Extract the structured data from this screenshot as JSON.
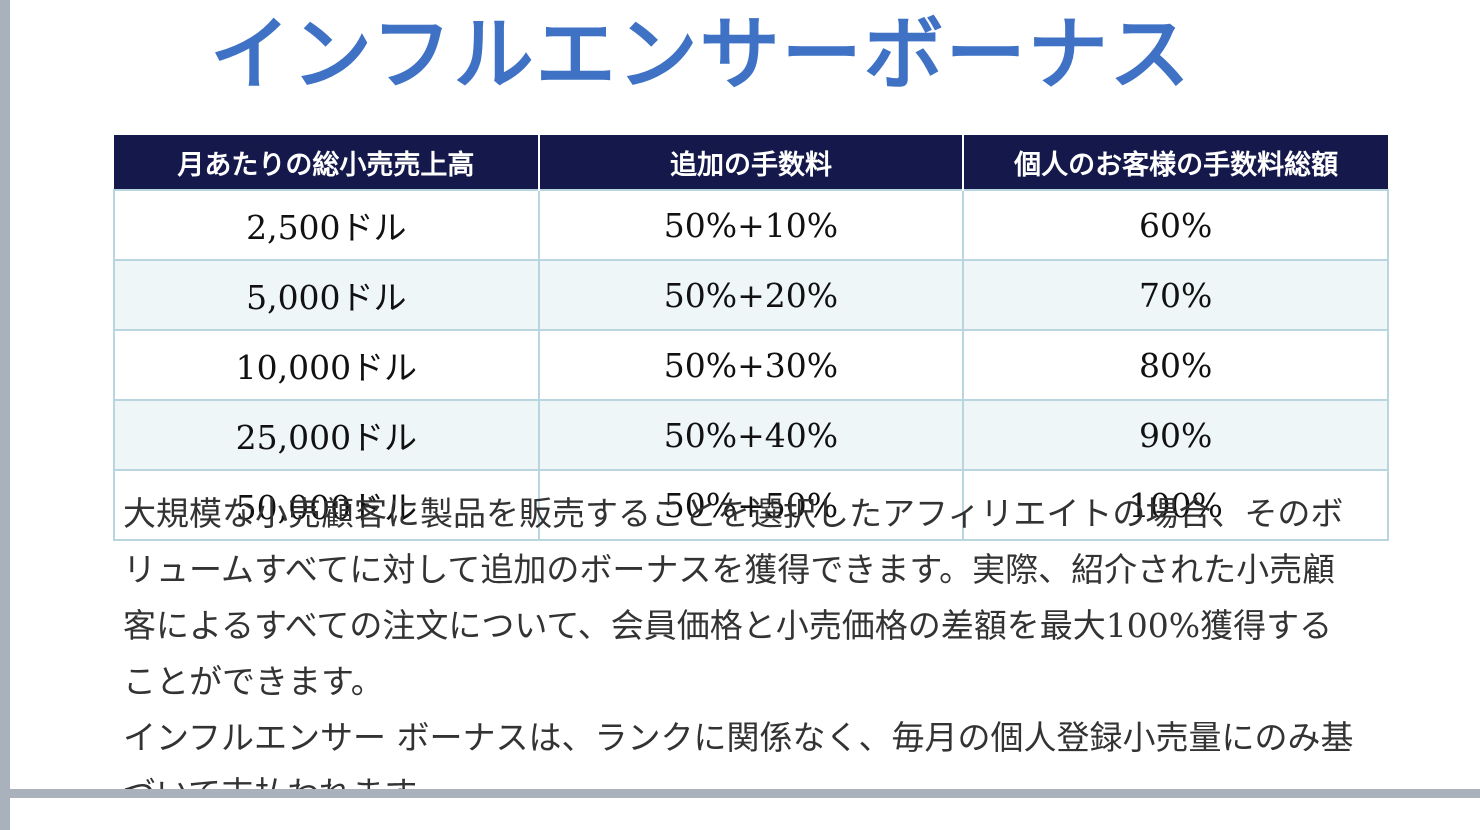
{
  "document": {
    "title": "インフルエンサーボーナス",
    "table": {
      "headers": [
        "月あたりの総小売売上高",
        "追加の手数料",
        "個人のお客様の手数料総額"
      ],
      "rows": [
        [
          "2,500ドル",
          "50%+10%",
          "60%"
        ],
        [
          "5,000ドル",
          "50%+20%",
          "70%"
        ],
        [
          "10,000ドル",
          "50%+30%",
          "80%"
        ],
        [
          "25,000ドル",
          "50%+40%",
          "90%"
        ],
        [
          "50,000ドル",
          "50%+50%",
          "100%"
        ]
      ]
    },
    "paragraphs": [
      "大規模な小売顧客に製品を販売することを選択したアフィリエイトの場合、そのボリュームすべてに対して追加のボーナスを獲得できます。実際、紹介された小売顧客によるすべての注文について、会員価格と小売価格の差額を最大100%獲得することができます。",
      "インフルエンサー ボーナスは、ランクに関係なく、毎月の個人登録小売量にのみ基づいて支払われます。"
    ]
  },
  "colors": {
    "title": "#3f72c4",
    "header_bg": "#15184a",
    "row_alt_bg": "#eef6f8",
    "grid_border": "#b9d5df",
    "frame": "#a9b1bd"
  }
}
